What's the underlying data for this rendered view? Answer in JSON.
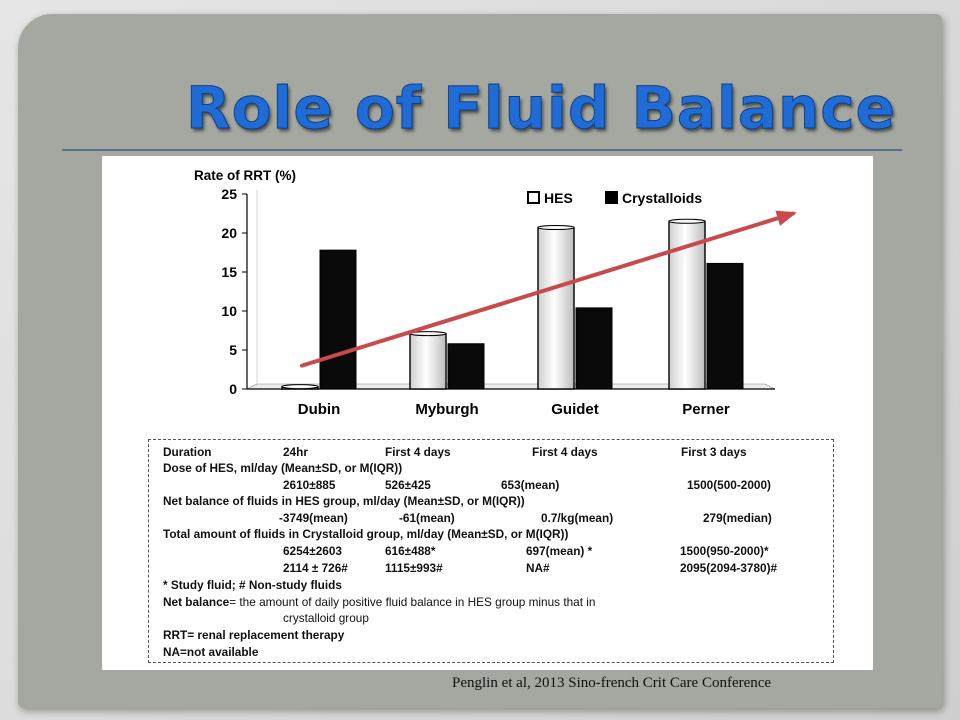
{
  "slide": {
    "title": "Role of Fluid Balance",
    "citation": "Penglin et al, 2013 Sino-french Crit Care Conference"
  },
  "chart_data": {
    "type": "bar",
    "ylabel": "Rate of RRT (%)",
    "ylim": [
      0,
      25
    ],
    "yticks": [
      0,
      5,
      10,
      15,
      20,
      25
    ],
    "categories": [
      "Dubin",
      "Myburgh",
      "Guidet",
      "Perner"
    ],
    "series": [
      {
        "name": "HES",
        "color": "#ffffff",
        "values": [
          0.3,
          7.1,
          20.7,
          21.5
        ]
      },
      {
        "name": "Crystalloids",
        "color": "#0a0a0a",
        "values": [
          17.8,
          5.8,
          10.4,
          16.1
        ]
      }
    ],
    "legend": "top-right",
    "grid": false,
    "trend_arrow": {
      "color": "#c94a4a",
      "from": {
        "category": "Dubin",
        "value": 3
      },
      "to": {
        "category": "Perner",
        "value": 22.5
      }
    }
  },
  "table": {
    "duration": {
      "label": "Duration",
      "values": [
        "24hr",
        "First 4 days",
        "First 4 days",
        "First 3 days"
      ]
    },
    "dose_header": "Dose of HES, ml/day (Mean±SD, or M(IQR))",
    "dose_values": [
      "2610±885",
      "526±425",
      "653(mean)",
      "1500(500-2000)"
    ],
    "net_header": "Net balance of fluids in HES group, ml/day (Mean±SD, or M(IQR))",
    "net_values": [
      "-3749(mean)",
      "-61(mean)",
      "0.7/kg(mean)",
      "279(median)"
    ],
    "total_header": "Total amount of fluids in Crystalloid group, ml/day (Mean±SD, or M(IQR))",
    "total_study": [
      "6254±2603",
      "616±488*",
      "697(mean) *",
      "1500(950-2000)*"
    ],
    "total_nonstudy": [
      "2114 ± 726#",
      "1115±993#",
      "NA#",
      "2095(2094-3780)#"
    ],
    "footnote": "* Study fluid; # Non-study fluids",
    "def_net_term": "Net balance",
    "def_net_text": "= the amount of daily positive fluid balance in HES group minus that in",
    "def_net_text2": "crystalloid group",
    "def_rrt": "RRT= renal replacement therapy",
    "def_na": "NA=not available"
  }
}
